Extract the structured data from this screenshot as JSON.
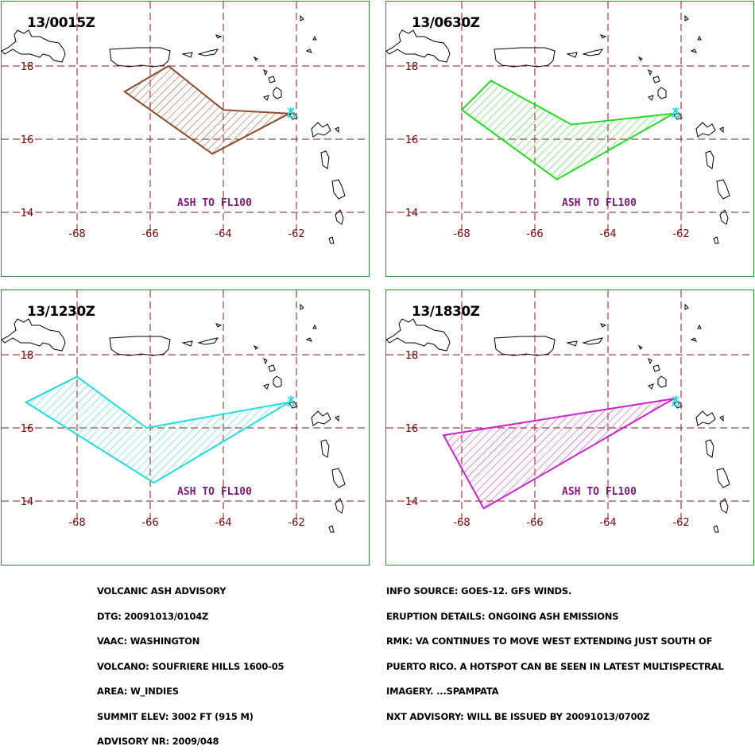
{
  "panels": [
    {
      "time": "13/0015Z",
      "color": "#8b4a2b",
      "ash_polygon": [
        [
          -66.7,
          17.3
        ],
        [
          -65.5,
          18.0
        ],
        [
          -64.0,
          16.8
        ],
        [
          -62.2,
          16.7
        ],
        [
          -64.3,
          15.6
        ]
      ]
    },
    {
      "time": "13/0630Z",
      "color": "#22dd22",
      "ash_polygon": [
        [
          -68.0,
          16.8
        ],
        [
          -67.2,
          17.6
        ],
        [
          -65.0,
          16.4
        ],
        [
          -62.2,
          16.7
        ],
        [
          -65.4,
          14.9
        ]
      ]
    },
    {
      "time": "13/1230Z",
      "color": "#22dddd",
      "ash_polygon": [
        [
          -69.4,
          16.7
        ],
        [
          -68.0,
          17.4
        ],
        [
          -66.1,
          16.0
        ],
        [
          -62.2,
          16.7
        ],
        [
          -65.9,
          14.5
        ]
      ]
    },
    {
      "time": "13/1830Z",
      "color": "#cc22cc",
      "ash_polygon": [
        [
          -68.5,
          15.8
        ],
        [
          -62.2,
          16.8
        ],
        [
          -67.4,
          13.8
        ]
      ]
    }
  ],
  "map": {
    "lon_labels": [
      "-68",
      "-66",
      "-64",
      "-62"
    ],
    "lon_values": [
      -68,
      -66,
      -64,
      -62
    ],
    "lat_labels": [
      "18",
      "16",
      "14"
    ],
    "lat_values": [
      18,
      16,
      14
    ],
    "ash_label": "ASH TO FL100",
    "volcano_symbol": "volcano-symbol",
    "grid_color": "#8b1a1a",
    "label_color": "#800000",
    "ash_label_color": "#7a1a7a"
  },
  "advisory": {
    "left_lines": [
      "VOLCANIC ASH ADVISORY",
      "DTG: 20091013/0104Z",
      "VAAC: WASHINGTON",
      "VOLCANO: SOUFRIERE HILLS 1600-05",
      "AREA: W_INDIES",
      "SUMMIT ELEV: 3002 FT (915 M)",
      "ADVISORY NR: 2009/048"
    ],
    "right_lines": [
      "INFO SOURCE: GOES-12. GFS WINDS.",
      "ERUPTION DETAILS: ONGOING ASH EMISSIONS",
      "RMK: VA CONTINUES TO MOVE WEST EXTENDING JUST SOUTH OF",
      "PUERTO RICO. A HOTSPOT CAN BE SEEN IN LATEST MULTISPECTRAL",
      "IMAGERY. ...SPAMPATA",
      "NXT ADVISORY: WILL BE ISSUED BY 20091013/0700Z"
    ]
  }
}
